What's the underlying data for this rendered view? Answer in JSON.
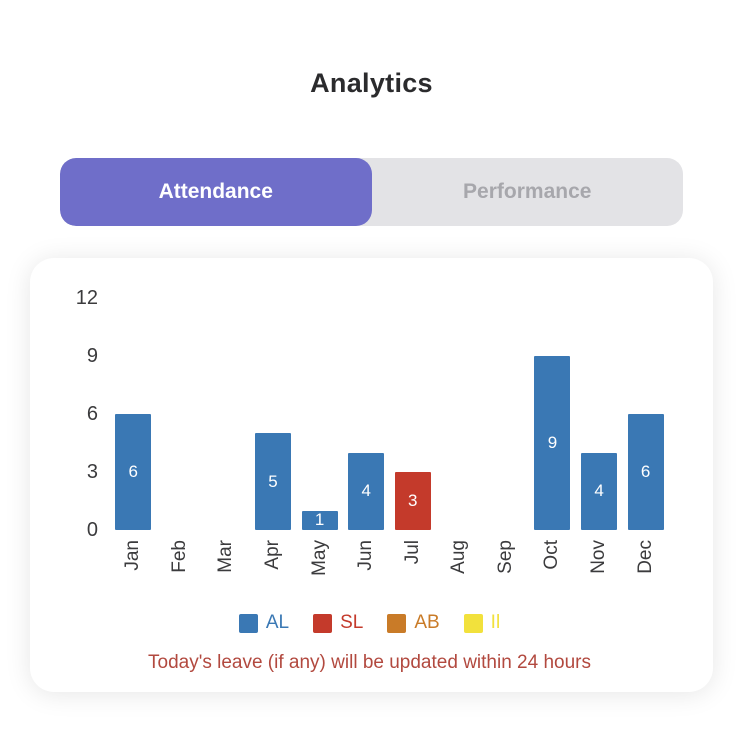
{
  "page": {
    "title": "Analytics"
  },
  "tabs": [
    {
      "label": "Attendance",
      "active": true
    },
    {
      "label": "Performance",
      "active": false
    }
  ],
  "colors": {
    "tab_active_bg": "#6f6ec9",
    "tab_bar_bg": "#e3e3e6",
    "bar_blue": "#3a78b4",
    "bar_red": "#c43a2b",
    "legend_orange": "#c97b28",
    "legend_yellow": "#f2e13c",
    "note_red": "#b2493f"
  },
  "chart_data": {
    "type": "bar",
    "title": "",
    "xlabel": "",
    "ylabel": "",
    "categories": [
      "Jan",
      "Feb",
      "Mar",
      "Apr",
      "May",
      "Jun",
      "Jul",
      "Aug",
      "Sep",
      "Oct",
      "Nov",
      "Dec"
    ],
    "values": [
      6,
      0,
      0,
      5,
      1,
      4,
      3,
      0,
      0,
      9,
      4,
      6
    ],
    "bar_colors": [
      "#3a78b4",
      "#3a78b4",
      "#3a78b4",
      "#3a78b4",
      "#3a78b4",
      "#3a78b4",
      "#c43a2b",
      "#3a78b4",
      "#3a78b4",
      "#3a78b4",
      "#3a78b4",
      "#3a78b4"
    ],
    "ylim": [
      0,
      12
    ],
    "yticks": [
      0,
      3,
      6,
      9,
      12
    ],
    "grid": false,
    "legend_position": "bottom",
    "legend": [
      {
        "label": "AL",
        "color": "#3a78b4"
      },
      {
        "label": "SL",
        "color": "#c43a2b"
      },
      {
        "label": "AB",
        "color": "#c97b28"
      },
      {
        "label": "Il",
        "color": "#f2e13c"
      }
    ]
  },
  "note": "Today's leave (if any) will be updated within 24 hours"
}
